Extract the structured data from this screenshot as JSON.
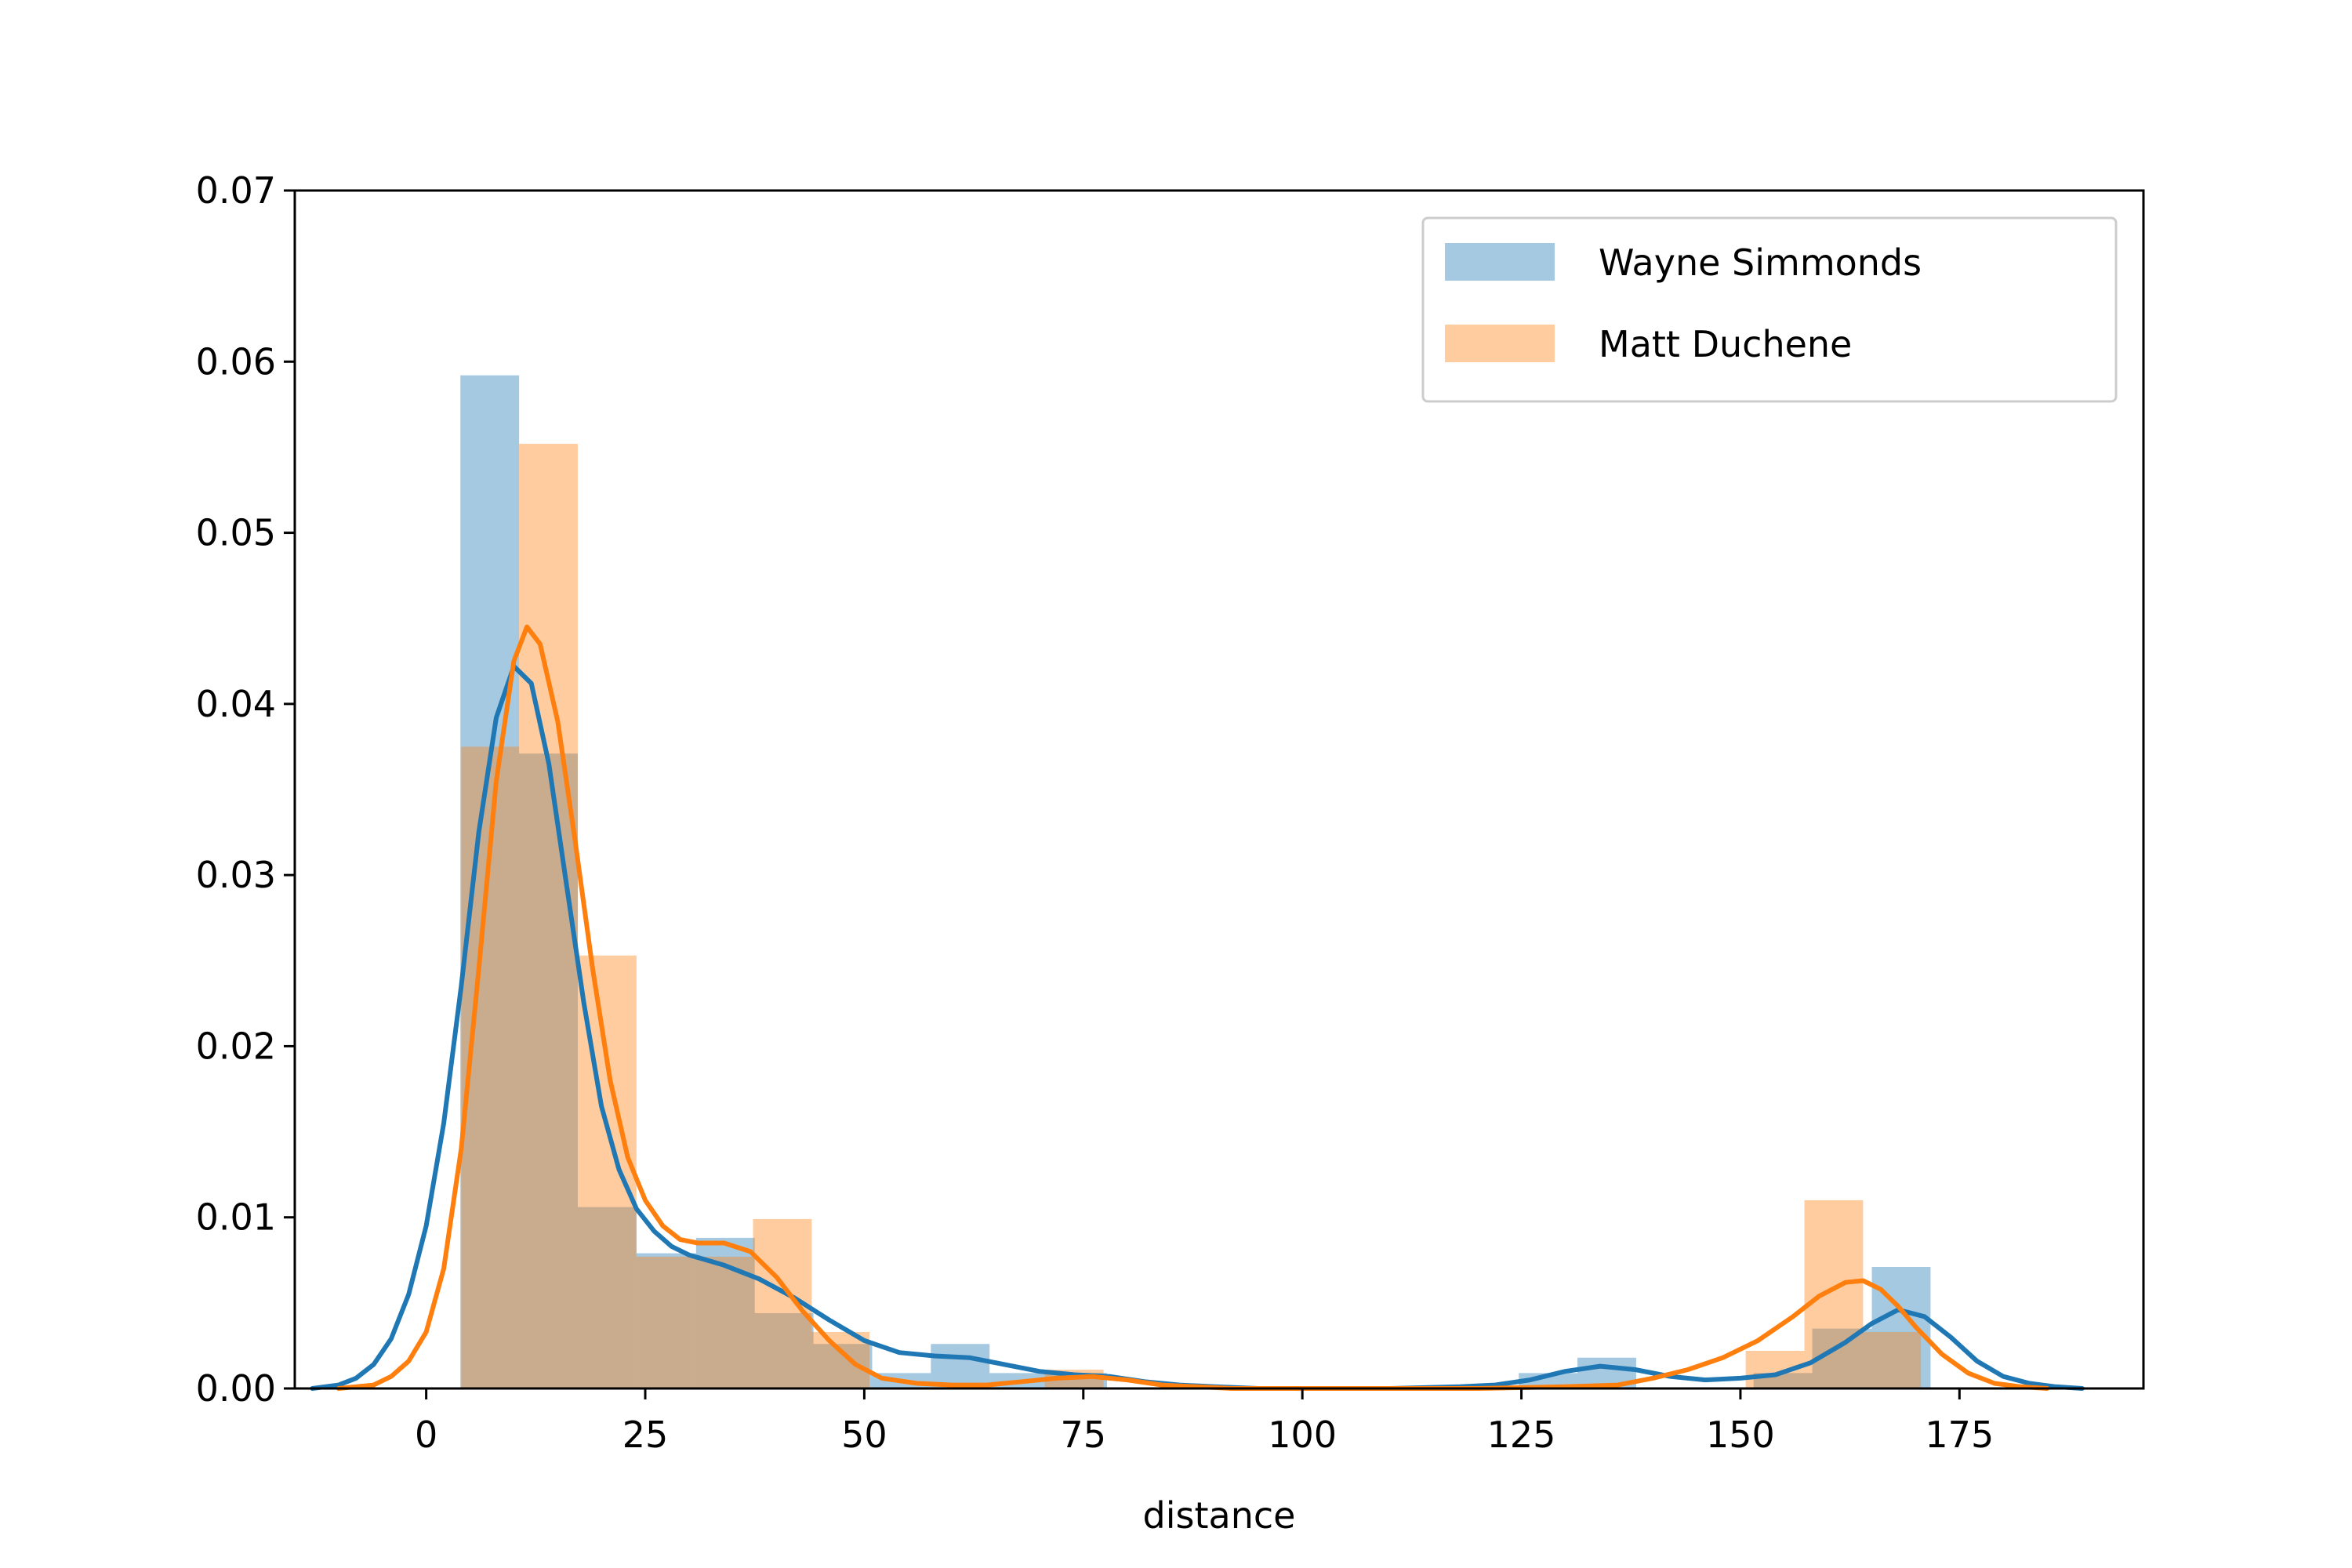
{
  "chart_data": {
    "type": "histogram-kde",
    "xlabel": "distance",
    "ylabel": "",
    "xlim": [
      -15,
      196
    ],
    "ylim": [
      0,
      0.07
    ],
    "xticks": [
      0,
      25,
      50,
      75,
      100,
      125,
      150,
      175
    ],
    "yticks": [
      0.0,
      0.01,
      0.02,
      0.03,
      0.04,
      0.05,
      0.06,
      0.07
    ],
    "grid": false,
    "legend_position": "top-right",
    "series": [
      {
        "name": "Wayne Simmonds",
        "color": "#1f77b4",
        "bins": [
          {
            "x0": 3.9,
            "x1": 10.6,
            "density": 0.0592
          },
          {
            "x0": 10.6,
            "x1": 17.3,
            "density": 0.0371
          },
          {
            "x0": 17.3,
            "x1": 24.0,
            "density": 0.0106
          },
          {
            "x0": 24.0,
            "x1": 30.8,
            "density": 0.0079
          },
          {
            "x0": 30.8,
            "x1": 37.5,
            "density": 0.0088
          },
          {
            "x0": 37.5,
            "x1": 44.2,
            "density": 0.0044
          },
          {
            "x0": 44.2,
            "x1": 50.9,
            "density": 0.0026
          },
          {
            "x0": 50.9,
            "x1": 57.6,
            "density": 0.0009
          },
          {
            "x0": 57.6,
            "x1": 64.3,
            "density": 0.0026
          },
          {
            "x0": 64.3,
            "x1": 71.0,
            "density": 0.0009
          },
          {
            "x0": 71.0,
            "x1": 77.7,
            "density": 0.0009
          },
          {
            "x0": 77.7,
            "x1": 84.4,
            "density": 0.0
          },
          {
            "x0": 84.4,
            "x1": 91.1,
            "density": 0.0
          },
          {
            "x0": 91.1,
            "x1": 97.9,
            "density": 0.0
          },
          {
            "x0": 97.9,
            "x1": 104.6,
            "density": 0.0
          },
          {
            "x0": 104.6,
            "x1": 111.3,
            "density": 0.0
          },
          {
            "x0": 111.3,
            "x1": 118.0,
            "density": 0.0
          },
          {
            "x0": 118.0,
            "x1": 124.7,
            "density": 0.0
          },
          {
            "x0": 124.7,
            "x1": 131.4,
            "density": 0.0009
          },
          {
            "x0": 131.4,
            "x1": 138.1,
            "density": 0.0018
          },
          {
            "x0": 138.1,
            "x1": 144.8,
            "density": 0.0
          },
          {
            "x0": 144.8,
            "x1": 151.5,
            "density": 0.0
          },
          {
            "x0": 151.5,
            "x1": 158.2,
            "density": 0.0009
          },
          {
            "x0": 158.2,
            "x1": 165.0,
            "density": 0.0035
          },
          {
            "x0": 165.0,
            "x1": 171.7,
            "density": 0.0071
          }
        ],
        "kde": [
          [
            -13,
            0.0
          ],
          [
            -10,
            0.0002
          ],
          [
            -8,
            0.0006
          ],
          [
            -6,
            0.0014
          ],
          [
            -4,
            0.0029
          ],
          [
            -2,
            0.0055
          ],
          [
            0,
            0.0095
          ],
          [
            2,
            0.0155
          ],
          [
            4,
            0.0235
          ],
          [
            6,
            0.0325
          ],
          [
            8,
            0.0392
          ],
          [
            10,
            0.0422
          ],
          [
            12,
            0.0412
          ],
          [
            14,
            0.0365
          ],
          [
            16,
            0.0295
          ],
          [
            18,
            0.0225
          ],
          [
            20,
            0.0165
          ],
          [
            22,
            0.0128
          ],
          [
            24,
            0.0105
          ],
          [
            26,
            0.0092
          ],
          [
            28,
            0.0083
          ],
          [
            30,
            0.0078
          ],
          [
            34,
            0.0072
          ],
          [
            38,
            0.0064
          ],
          [
            42,
            0.0053
          ],
          [
            46,
            0.004
          ],
          [
            50,
            0.0028
          ],
          [
            54,
            0.0021
          ],
          [
            58,
            0.0019
          ],
          [
            62,
            0.0018
          ],
          [
            66,
            0.0014
          ],
          [
            70,
            0.001
          ],
          [
            74,
            0.0008
          ],
          [
            78,
            0.0007
          ],
          [
            82,
            0.0004
          ],
          [
            86,
            0.0002
          ],
          [
            90,
            0.0001
          ],
          [
            95,
            0.0
          ],
          [
            100,
            0.0
          ],
          [
            110,
            0.0
          ],
          [
            118,
            0.0001
          ],
          [
            122,
            0.0002
          ],
          [
            126,
            0.0005
          ],
          [
            130,
            0.001
          ],
          [
            134,
            0.0013
          ],
          [
            138,
            0.0011
          ],
          [
            142,
            0.0007
          ],
          [
            146,
            0.0005
          ],
          [
            150,
            0.0006
          ],
          [
            154,
            0.0008
          ],
          [
            158,
            0.0015
          ],
          [
            162,
            0.0027
          ],
          [
            165,
            0.0038
          ],
          [
            168,
            0.0046
          ],
          [
            171,
            0.0042
          ],
          [
            174,
            0.003
          ],
          [
            177,
            0.0016
          ],
          [
            180,
            0.0007
          ],
          [
            183,
            0.0003
          ],
          [
            186,
            0.0001
          ],
          [
            189,
            0.0
          ]
        ]
      },
      {
        "name": "Matt Duchene",
        "color": "#ff7f0e",
        "bins": [
          {
            "x0": 4.0,
            "x1": 10.6,
            "density": 0.0375
          },
          {
            "x0": 10.6,
            "x1": 17.3,
            "density": 0.0552
          },
          {
            "x0": 17.3,
            "x1": 24.0,
            "density": 0.0253
          },
          {
            "x0": 24.0,
            "x1": 30.6,
            "density": 0.0077
          },
          {
            "x0": 30.6,
            "x1": 37.3,
            "density": 0.0077
          },
          {
            "x0": 37.3,
            "x1": 44.0,
            "density": 0.0099
          },
          {
            "x0": 44.0,
            "x1": 50.6,
            "density": 0.0033
          },
          {
            "x0": 50.6,
            "x1": 57.3,
            "density": 0.0
          },
          {
            "x0": 57.3,
            "x1": 64.0,
            "density": 0.0
          },
          {
            "x0": 64.0,
            "x1": 70.6,
            "density": 0.0
          },
          {
            "x0": 70.6,
            "x1": 77.3,
            "density": 0.0011
          },
          {
            "x0": 77.3,
            "x1": 84.0,
            "density": 0.0
          },
          {
            "x0": 84.0,
            "x1": 90.6,
            "density": 0.0
          },
          {
            "x0": 90.6,
            "x1": 97.3,
            "density": 0.0
          },
          {
            "x0": 97.3,
            "x1": 104.0,
            "density": 0.0
          },
          {
            "x0": 104.0,
            "x1": 110.6,
            "density": 0.0
          },
          {
            "x0": 110.6,
            "x1": 117.3,
            "density": 0.0
          },
          {
            "x0": 117.3,
            "x1": 124.0,
            "density": 0.0
          },
          {
            "x0": 124.0,
            "x1": 130.6,
            "density": 0.0
          },
          {
            "x0": 130.6,
            "x1": 137.3,
            "density": 0.0
          },
          {
            "x0": 137.3,
            "x1": 144.0,
            "density": 0.0
          },
          {
            "x0": 144.0,
            "x1": 150.6,
            "density": 0.0
          },
          {
            "x0": 150.6,
            "x1": 157.3,
            "density": 0.0022
          },
          {
            "x0": 157.3,
            "x1": 164.0,
            "density": 0.011
          },
          {
            "x0": 164.0,
            "x1": 170.6,
            "density": 0.0033
          }
        ],
        "kde": [
          [
            -10,
            0.0
          ],
          [
            -6,
            0.0002
          ],
          [
            -4,
            0.0007
          ],
          [
            -2,
            0.0016
          ],
          [
            0,
            0.0033
          ],
          [
            2,
            0.007
          ],
          [
            4,
            0.014
          ],
          [
            6,
            0.0245
          ],
          [
            8,
            0.0355
          ],
          [
            10,
            0.0425
          ],
          [
            11.5,
            0.0445
          ],
          [
            13,
            0.0435
          ],
          [
            15,
            0.039
          ],
          [
            17,
            0.032
          ],
          [
            19,
            0.0245
          ],
          [
            21,
            0.018
          ],
          [
            23,
            0.0135
          ],
          [
            25,
            0.011
          ],
          [
            27,
            0.0095
          ],
          [
            29,
            0.0087
          ],
          [
            31,
            0.0085
          ],
          [
            34,
            0.0085
          ],
          [
            37,
            0.008
          ],
          [
            40,
            0.0065
          ],
          [
            43,
            0.0045
          ],
          [
            46,
            0.0028
          ],
          [
            49,
            0.0014
          ],
          [
            52,
            0.0006
          ],
          [
            56,
            0.0003
          ],
          [
            60,
            0.0002
          ],
          [
            64,
            0.0002
          ],
          [
            68,
            0.0004
          ],
          [
            72,
            0.0006
          ],
          [
            76,
            0.0007
          ],
          [
            80,
            0.0005
          ],
          [
            84,
            0.0002
          ],
          [
            88,
            0.0001
          ],
          [
            92,
            0.0
          ],
          [
            100,
            0.0
          ],
          [
            120,
            0.0
          ],
          [
            130,
            0.0001
          ],
          [
            136,
            0.0002
          ],
          [
            140,
            0.0006
          ],
          [
            144,
            0.0011
          ],
          [
            148,
            0.0018
          ],
          [
            152,
            0.0028
          ],
          [
            156,
            0.0042
          ],
          [
            159,
            0.0054
          ],
          [
            162,
            0.0062
          ],
          [
            164,
            0.0063
          ],
          [
            166,
            0.0058
          ],
          [
            168,
            0.0048
          ],
          [
            170,
            0.0036
          ],
          [
            173,
            0.002
          ],
          [
            176,
            0.0009
          ],
          [
            179,
            0.0003
          ],
          [
            182,
            0.0001
          ],
          [
            185,
            0.0
          ]
        ]
      }
    ]
  }
}
